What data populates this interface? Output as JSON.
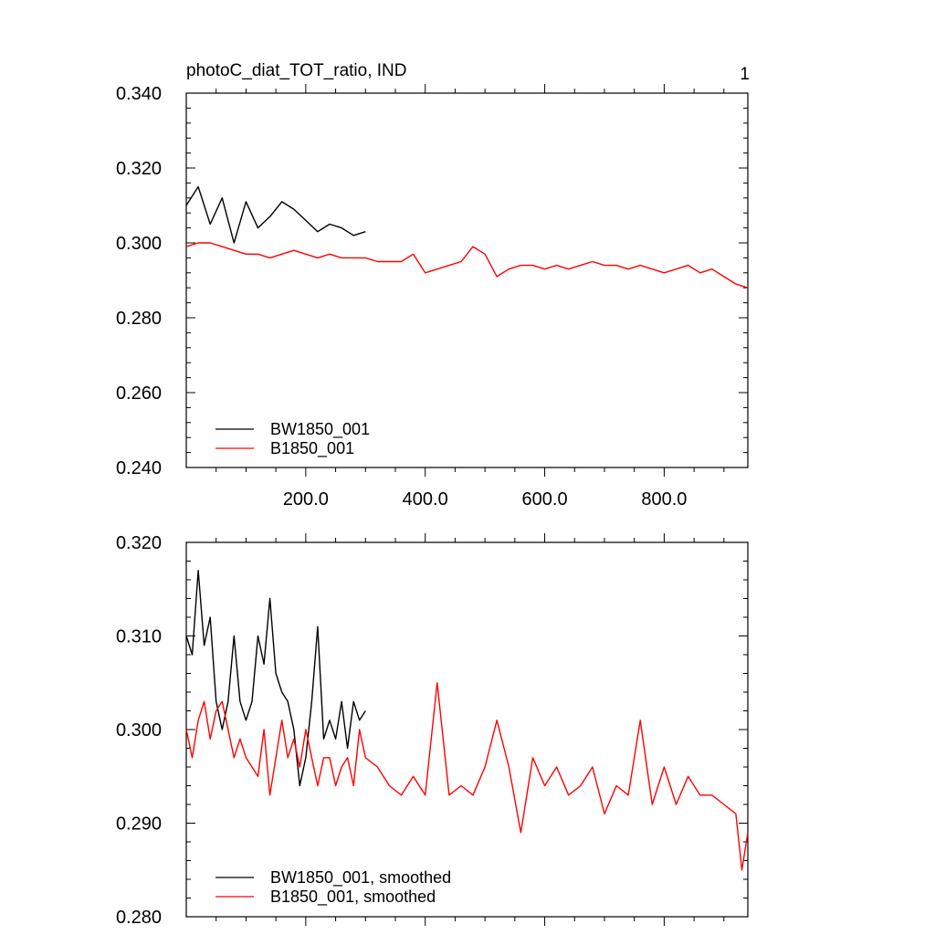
{
  "colors": {
    "series_a": "#000000",
    "series_b": "#ff0000",
    "axis": "#000000",
    "background": "#ffffff"
  },
  "chart_data": [
    {
      "type": "line",
      "title": "photoC_diat_TOT_ratio, IND",
      "corner_label": "1",
      "xlim": [
        0,
        940
      ],
      "ylim": [
        0.24,
        0.34
      ],
      "xticks": [
        200,
        400,
        600,
        800
      ],
      "xtick_labels": [
        "200.0",
        "400.0",
        "600.0",
        "800.0"
      ],
      "yticks": [
        0.24,
        0.26,
        0.28,
        0.3,
        0.32,
        0.34
      ],
      "ytick_labels": [
        "0.240",
        "0.260",
        "0.280",
        "0.300",
        "0.320",
        "0.340"
      ],
      "legend_position": "bottom-left",
      "series": [
        {
          "name": "BW1850_001",
          "color": "#000000",
          "x": [
            0,
            20,
            40,
            60,
            80,
            100,
            120,
            140,
            160,
            180,
            200,
            220,
            240,
            260,
            280,
            300
          ],
          "y": [
            0.31,
            0.315,
            0.305,
            0.312,
            0.3,
            0.311,
            0.304,
            0.307,
            0.311,
            0.309,
            0.306,
            0.303,
            0.305,
            0.304,
            0.302,
            0.303
          ]
        },
        {
          "name": "B1850_001",
          "color": "#ff0000",
          "x": [
            0,
            20,
            40,
            60,
            80,
            100,
            120,
            140,
            160,
            180,
            200,
            220,
            240,
            260,
            280,
            300,
            320,
            340,
            360,
            380,
            400,
            420,
            440,
            460,
            480,
            500,
            520,
            540,
            560,
            580,
            600,
            620,
            640,
            660,
            680,
            700,
            720,
            740,
            760,
            780,
            800,
            820,
            840,
            860,
            880,
            900,
            920,
            940
          ],
          "y": [
            0.299,
            0.3,
            0.3,
            0.299,
            0.298,
            0.297,
            0.297,
            0.296,
            0.297,
            0.298,
            0.297,
            0.296,
            0.297,
            0.296,
            0.296,
            0.296,
            0.295,
            0.295,
            0.295,
            0.297,
            0.292,
            0.293,
            0.294,
            0.295,
            0.299,
            0.297,
            0.291,
            0.293,
            0.294,
            0.294,
            0.293,
            0.294,
            0.293,
            0.294,
            0.295,
            0.294,
            0.294,
            0.293,
            0.294,
            0.293,
            0.292,
            0.293,
            0.294,
            0.292,
            0.293,
            0.291,
            0.289,
            0.288
          ]
        }
      ]
    },
    {
      "type": "line",
      "xlim": [
        0,
        940
      ],
      "ylim": [
        0.28,
        0.32
      ],
      "yticks": [
        0.28,
        0.29,
        0.3,
        0.31,
        0.32
      ],
      "ytick_labels": [
        "0.280",
        "0.290",
        "0.300",
        "0.310",
        "0.320"
      ],
      "legend_position": "bottom-left",
      "series": [
        {
          "name": "BW1850_001, smoothed",
          "color": "#000000",
          "x": [
            0,
            10,
            20,
            30,
            40,
            50,
            60,
            70,
            80,
            90,
            100,
            110,
            120,
            130,
            140,
            150,
            160,
            170,
            180,
            190,
            200,
            210,
            220,
            230,
            240,
            250,
            260,
            270,
            280,
            290,
            300
          ],
          "y": [
            0.31,
            0.308,
            0.317,
            0.309,
            0.312,
            0.303,
            0.3,
            0.303,
            0.31,
            0.303,
            0.301,
            0.303,
            0.31,
            0.307,
            0.314,
            0.306,
            0.304,
            0.303,
            0.3,
            0.294,
            0.297,
            0.303,
            0.311,
            0.299,
            0.301,
            0.299,
            0.303,
            0.298,
            0.303,
            0.301,
            0.302
          ]
        },
        {
          "name": "B1850_001, smoothed",
          "color": "#ff0000",
          "x": [
            0,
            10,
            20,
            30,
            40,
            50,
            60,
            70,
            80,
            90,
            100,
            110,
            120,
            130,
            140,
            150,
            160,
            170,
            180,
            190,
            200,
            210,
            220,
            230,
            240,
            250,
            260,
            270,
            280,
            290,
            300,
            320,
            340,
            360,
            380,
            400,
            420,
            440,
            460,
            480,
            500,
            520,
            540,
            560,
            580,
            600,
            620,
            640,
            660,
            680,
            700,
            720,
            740,
            760,
            780,
            800,
            820,
            840,
            860,
            880,
            900,
            920,
            930,
            940
          ],
          "y": [
            0.3,
            0.297,
            0.301,
            0.303,
            0.299,
            0.302,
            0.303,
            0.3,
            0.297,
            0.299,
            0.297,
            0.296,
            0.295,
            0.3,
            0.293,
            0.297,
            0.301,
            0.297,
            0.299,
            0.296,
            0.3,
            0.297,
            0.294,
            0.297,
            0.297,
            0.294,
            0.296,
            0.297,
            0.294,
            0.3,
            0.297,
            0.296,
            0.294,
            0.293,
            0.295,
            0.293,
            0.305,
            0.293,
            0.294,
            0.293,
            0.296,
            0.301,
            0.296,
            0.289,
            0.297,
            0.294,
            0.296,
            0.293,
            0.294,
            0.296,
            0.291,
            0.294,
            0.293,
            0.301,
            0.292,
            0.296,
            0.292,
            0.295,
            0.293,
            0.293,
            0.292,
            0.291,
            0.285,
            0.289
          ]
        }
      ]
    }
  ]
}
